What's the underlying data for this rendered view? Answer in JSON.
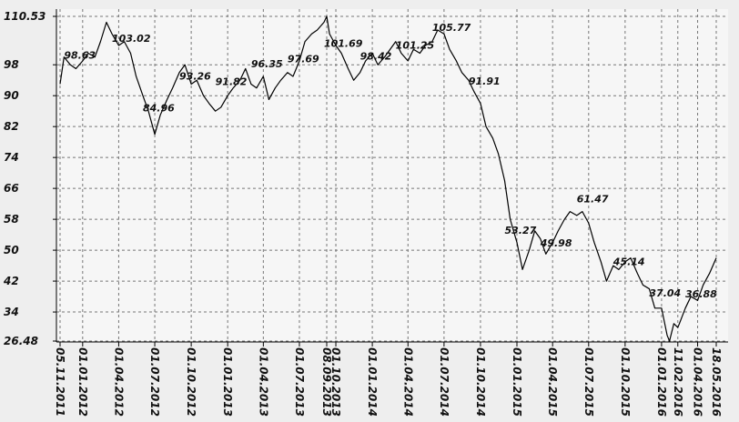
{
  "chart_data": {
    "type": "line",
    "x": [
      "05.11.2011",
      "15.11.2011",
      "01.12.2011",
      "15.12.2011",
      "01.01.2012",
      "15.01.2012",
      "01.02.2012",
      "15.02.2012",
      "01.03.2012",
      "15.03.2012",
      "01.04.2012",
      "15.04.2012",
      "01.05.2012",
      "15.05.2012",
      "01.06.2012",
      "15.06.2012",
      "01.07.2012",
      "15.07.2012",
      "01.08.2012",
      "15.08.2012",
      "01.09.2012",
      "15.09.2012",
      "01.10.2012",
      "15.10.2012",
      "01.11.2012",
      "15.11.2012",
      "01.12.2012",
      "15.12.2012",
      "01.01.2013",
      "15.01.2013",
      "01.02.2013",
      "15.02.2013",
      "01.03.2013",
      "15.03.2013",
      "01.04.2013",
      "15.04.2013",
      "01.05.2013",
      "15.05.2013",
      "01.06.2013",
      "15.06.2013",
      "01.07.2013",
      "15.07.2013",
      "01.08.2013",
      "15.08.2013",
      "01.09.2013",
      "08.09.2013",
      "15.09.2013",
      "01.10.2013",
      "15.10.2013",
      "01.11.2013",
      "15.11.2013",
      "01.12.2013",
      "15.12.2013",
      "01.01.2014",
      "15.01.2014",
      "01.02.2014",
      "15.02.2014",
      "01.03.2014",
      "15.03.2014",
      "01.04.2014",
      "15.04.2014",
      "01.05.2014",
      "15.05.2014",
      "01.06.2014",
      "15.06.2014",
      "01.07.2014",
      "15.07.2014",
      "01.08.2014",
      "15.08.2014",
      "01.09.2014",
      "15.09.2014",
      "01.10.2014",
      "15.10.2014",
      "01.11.2014",
      "15.11.2014",
      "01.12.2014",
      "15.12.2014",
      "01.01.2015",
      "15.01.2015",
      "01.02.2015",
      "15.02.2015",
      "01.03.2015",
      "15.03.2015",
      "01.04.2015",
      "15.04.2015",
      "01.05.2015",
      "15.05.2015",
      "01.06.2015",
      "15.06.2015",
      "01.07.2015",
      "15.07.2015",
      "01.08.2015",
      "15.08.2015",
      "01.09.2015",
      "15.09.2015",
      "01.10.2015",
      "15.10.2015",
      "01.11.2015",
      "15.11.2015",
      "01.12.2015",
      "15.12.2015",
      "01.01.2016",
      "15.01.2016",
      "21.01.2016",
      "01.02.2016",
      "11.02.2016",
      "15.02.2016",
      "01.03.2016",
      "15.03.2016",
      "01.04.2016",
      "15.04.2016",
      "01.05.2016",
      "18.05.2016"
    ],
    "series": [
      {
        "color": "#000000",
        "values": [
          93,
          100,
          98,
          97,
          99,
          101,
          100,
          104,
          109,
          106,
          103,
          104,
          101,
          95,
          90,
          86,
          80,
          85,
          89,
          92,
          96,
          98,
          93,
          94,
          90,
          88,
          86,
          87,
          90,
          92,
          94,
          97,
          93,
          92,
          95,
          89,
          92,
          94,
          96,
          95,
          99,
          104,
          106,
          107,
          109,
          110.53,
          106,
          103,
          101,
          97,
          94,
          96,
          99,
          101,
          98,
          100,
          102,
          104,
          101,
          99,
          102,
          101,
          103,
          104,
          107,
          106,
          102,
          99,
          96,
          94,
          91,
          88,
          82,
          79,
          75,
          68,
          58,
          52,
          45,
          50,
          55,
          53,
          49,
          52,
          55,
          58,
          60,
          59,
          60,
          57,
          52,
          47,
          42,
          46,
          45,
          47,
          48,
          44,
          41,
          40,
          35,
          35,
          28,
          26.48,
          31,
          30,
          31,
          35,
          38,
          37,
          41,
          44,
          48
        ]
      }
    ],
    "annotations": [
      {
        "x": "15.11.2011",
        "y": 98.63
      },
      {
        "x": "15.03.2012",
        "y": 103.02
      },
      {
        "x": "01.06.2012",
        "y": 84.96
      },
      {
        "x": "01.09.2012",
        "y": 93.26
      },
      {
        "x": "01.12.2012",
        "y": 91.82
      },
      {
        "x": "01.03.2013",
        "y": 96.35
      },
      {
        "x": "01.06.2013",
        "y": 97.69
      },
      {
        "x": "01.09.2013",
        "y": 101.69
      },
      {
        "x": "01.12.2013",
        "y": 98.42
      },
      {
        "x": "01.03.2014",
        "y": 101.25
      },
      {
        "x": "01.06.2014",
        "y": 105.77
      },
      {
        "x": "01.09.2014",
        "y": 91.91
      },
      {
        "x": "01.12.2014",
        "y": 53.27
      },
      {
        "x": "01.03.2015",
        "y": 49.98
      },
      {
        "x": "01.06.2015",
        "y": 61.47
      },
      {
        "x": "01.09.2015",
        "y": 45.14
      },
      {
        "x": "01.12.2015",
        "y": 37.04
      },
      {
        "x": "01.03.2016",
        "y": 36.88
      }
    ],
    "xlim": [
      "05.11.2011",
      "18.05.2016"
    ],
    "xticks": [
      "05.11.2011",
      "01.01.2012",
      "01.04.2012",
      "01.07.2012",
      "01.10.2012",
      "01.01.2013",
      "01.04.2013",
      "01.07.2013",
      "08.09.2013",
      "01.10.2013",
      "01.01.2014",
      "01.04.2014",
      "01.07.2014",
      "01.10.2014",
      "01.01.2015",
      "01.04.2015",
      "01.07.2015",
      "01.10.2015",
      "01.01.2016",
      "11.02.2016",
      "01.04.2016",
      "18.05.2016"
    ],
    "ylim": [
      26.48,
      110.53
    ],
    "yticks": [
      26.48,
      34,
      42,
      50,
      58,
      66,
      74,
      82,
      90,
      98,
      110.53
    ],
    "grid": true
  }
}
